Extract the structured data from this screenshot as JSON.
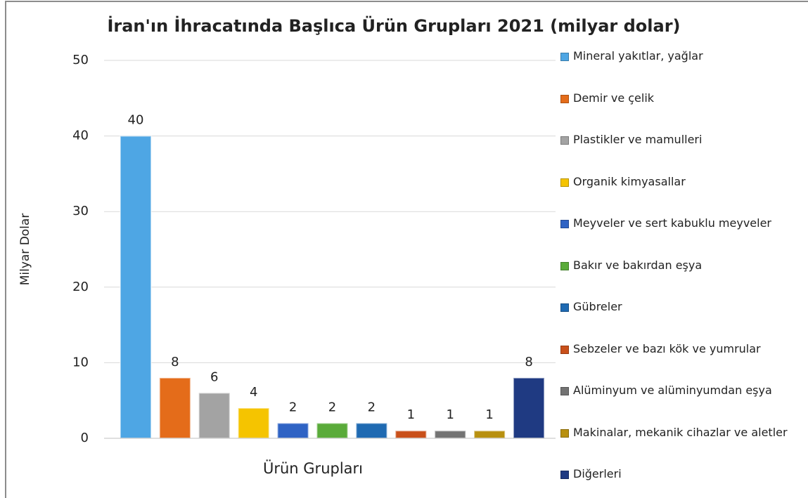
{
  "chart_data": {
    "type": "bar",
    "title": "İran'ın İhracatında Başlıca Ürün Grupları 2021 (milyar dolar)",
    "x_label": "Ürün Grupları",
    "y_label": "Milyar Dolar",
    "categories": [
      "Mineral yakıtlar, yağlar",
      "Demir ve çelik",
      "Plastikler ve mamulleri",
      "Organik kimyasallar",
      "Meyveler ve sert kabuklu meyveler",
      "Bakır ve bakırdan eşya",
      "Gübreler",
      "Sebzeler ve bazı kök ve yumrular",
      "Alüminyum ve alüminyumdan eşya",
      "Makinalar, mekanik cihazlar ve aletler",
      "Diğerleri"
    ],
    "values": [
      40,
      8,
      6,
      4,
      2,
      2,
      2,
      1,
      1,
      1,
      8
    ],
    "colors": [
      "#4ea6e4",
      "#e46c1a",
      "#a3a3a3",
      "#f5c400",
      "#2f63c4",
      "#5aab3a",
      "#1f6ab2",
      "#c9501a",
      "#737373",
      "#b8900f",
      "#1f3a82"
    ],
    "ylim": [
      0,
      50
    ],
    "yticks": [
      0,
      10,
      20,
      30,
      40,
      50
    ],
    "grid": true,
    "legend": "right"
  }
}
